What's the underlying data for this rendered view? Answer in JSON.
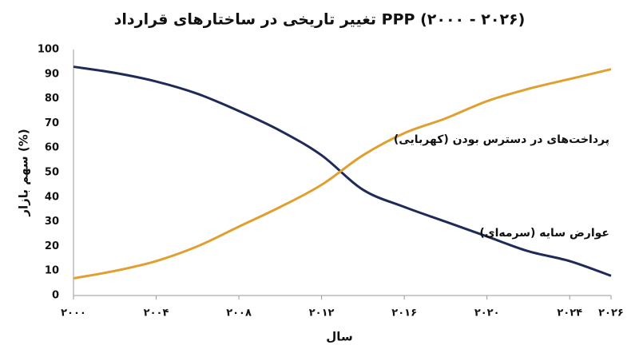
{
  "chart_data": {
    "type": "line",
    "title": "تغییر تاریخی در ساختارهای قرارداد PPP (۲۰۰۰ - ۲۰۲۶)",
    "x_label": "سال",
    "y_label": "سهم بازار (%)",
    "x": [
      2000,
      2002,
      2004,
      2006,
      2008,
      2010,
      2012,
      2014,
      2016,
      2018,
      2020,
      2022,
      2024,
      2026
    ],
    "series": [
      {
        "name": "عوارض سایه (سرمه‌ای)",
        "color": "#1f2a5a",
        "values": [
          93,
          90.5,
          87,
          82,
          75,
          67,
          57,
          43,
          36,
          30,
          24,
          18,
          14,
          8
        ]
      },
      {
        "name": "پرداخت‌های در دسترس بودن (کهربایی)",
        "color": "#e0a030",
        "values": [
          7,
          10,
          14,
          20,
          28,
          36,
          45,
          57,
          66,
          72,
          79,
          84,
          88,
          92
        ]
      }
    ],
    "xlim": [
      2000,
      2026
    ],
    "xticks": [
      {
        "value": 2000,
        "label": "۲۰۰۰"
      },
      {
        "value": 2004,
        "label": "۲۰۰۴"
      },
      {
        "value": 2008,
        "label": "۲۰۰۸"
      },
      {
        "value": 2012,
        "label": "۲۰۱۲"
      },
      {
        "value": 2016,
        "label": "۲۰۱۶"
      },
      {
        "value": 2020,
        "label": "۲۰۲۰"
      },
      {
        "value": 2024,
        "label": "۲۰۲۴"
      },
      {
        "value": 2026,
        "label": "۲۰۲۶"
      }
    ],
    "ylim": [
      0,
      100
    ],
    "yticks": [
      0,
      10,
      20,
      30,
      40,
      50,
      60,
      70,
      80,
      90,
      100
    ],
    "grid": false
  }
}
